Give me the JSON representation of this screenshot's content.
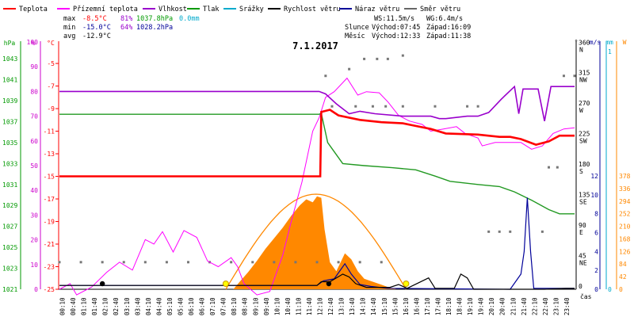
{
  "chart_data": {
    "type": "line",
    "title": "7.1.2017",
    "xlabel": "čas",
    "legend": [
      {
        "name": "Teplota",
        "color": "#ff0000"
      },
      {
        "name": "Přízemní teplota",
        "color": "#ff00ff"
      },
      {
        "name": "Vlhkost",
        "color": "#9900cc"
      },
      {
        "name": "Tlak",
        "color": "#009900"
      },
      {
        "name": "Srážky",
        "color": "#00aacc"
      },
      {
        "name": "Rychlost větru",
        "color": "#000000"
      },
      {
        "name": "Náraz větru",
        "color": "#000099"
      },
      {
        "name": "Směr větru",
        "color": "#666666"
      }
    ],
    "stats": {
      "max_label": "max",
      "min_label": "min",
      "avg_label": "avg",
      "max_temp": "-8.5°C",
      "max_hum": "81%",
      "max_press": "1037.8hPa",
      "max_rain": "0.0mm",
      "min_temp": "-15.0°C",
      "min_hum": "64%",
      "min_press": "1028.2hPa",
      "avg_temp": "-12.9°C"
    },
    "wind_info": {
      "ws": "WS:11.5m/s",
      "wg": "WG:6.4m/s"
    },
    "sun": {
      "label": "Slunce",
      "rise": "Východ:07:45",
      "set": "Západ:16:09"
    },
    "moon": {
      "label": "Měsíc",
      "rise": "Východ:12:33",
      "set": "Západ:11:38"
    },
    "axes": {
      "pressure": {
        "unit": "hPa",
        "ticks": [
          "1043",
          "1041",
          "1039",
          "1037",
          "1035",
          "1033",
          "1031",
          "1029",
          "1027",
          "1025",
          "1023",
          "1021"
        ],
        "range": [
          1021,
          1044.6
        ]
      },
      "humidity": {
        "unit": "%",
        "ticks": [
          "100",
          "90",
          "80",
          "70",
          "60",
          "50",
          "40",
          "30",
          "20",
          "10",
          "0"
        ],
        "range": [
          0,
          100
        ]
      },
      "temperature": {
        "unit": "°C",
        "ticks": [
          "-5",
          "-7",
          "-9",
          "-11",
          "-13",
          "-15",
          "-17",
          "-19",
          "-21",
          "-23",
          "-25"
        ],
        "range": [
          -25,
          -3.1
        ]
      },
      "direction": {
        "unit": "°",
        "ticks": [
          "360 N",
          "315 NW",
          "270 W",
          "225 SW",
          "180 S",
          "135 SE",
          "90 E",
          "45 NE",
          "0"
        ],
        "range": [
          0,
          360
        ]
      },
      "wind": {
        "unit": "m/s",
        "ticks": [
          "12",
          "10",
          "8",
          "6",
          "4",
          "2",
          "0"
        ],
        "range": [
          0,
          12
        ]
      },
      "rain": {
        "unit": "mm",
        "ticks": [
          "1",
          "0"
        ]
      },
      "solar": {
        "unit": "W",
        "ticks": [
          "378",
          "336",
          "294",
          "252",
          "210",
          "168",
          "126",
          "84",
          "42",
          "0"
        ],
        "range": [
          0,
          378
        ]
      },
      "time_ticks": [
        "00:10",
        "00:40",
        "01:10",
        "01:40",
        "02:10",
        "02:40",
        "03:10",
        "03:40",
        "04:10",
        "04:40",
        "05:10",
        "05:40",
        "06:10",
        "06:40",
        "07:10",
        "07:40",
        "08:10",
        "08:40",
        "09:10",
        "09:40",
        "10:10",
        "10:40",
        "11:10",
        "11:40",
        "12:10",
        "12:40",
        "13:10",
        "13:40",
        "14:10",
        "14:40",
        "15:10",
        "15:40",
        "16:10",
        "16:40",
        "17:10",
        "17:40",
        "18:10",
        "18:40",
        "19:10",
        "19:40",
        "20:10",
        "20:40",
        "21:10",
        "21:40",
        "22:10",
        "22:40",
        "23:10",
        "23:40"
      ]
    },
    "series": {
      "temperature": {
        "unit": "°C",
        "points": [
          [
            0,
            -15
          ],
          [
            12.15,
            -15
          ],
          [
            12.2,
            -9.3
          ],
          [
            12.6,
            -9.1
          ],
          [
            13,
            -9.6
          ],
          [
            14,
            -10
          ],
          [
            15,
            -10.2
          ],
          [
            16,
            -10.3
          ],
          [
            16.5,
            -10.5
          ],
          [
            17.3,
            -10.8
          ],
          [
            18,
            -11.2
          ],
          [
            19.5,
            -11.3
          ],
          [
            20.5,
            -11.5
          ],
          [
            21,
            -11.5
          ],
          [
            21.5,
            -11.7
          ],
          [
            22.2,
            -12.2
          ],
          [
            22.8,
            -11.9
          ],
          [
            23.3,
            -11.4
          ],
          [
            24,
            -11.4
          ]
        ]
      },
      "humidity": {
        "unit": "%",
        "points": [
          [
            0,
            80
          ],
          [
            12.1,
            80
          ],
          [
            12.4,
            79
          ],
          [
            12.9,
            75
          ],
          [
            13.5,
            71
          ],
          [
            14,
            72
          ],
          [
            14.7,
            71
          ],
          [
            16,
            70
          ],
          [
            17.3,
            70
          ],
          [
            17.7,
            69
          ],
          [
            18,
            69
          ],
          [
            19,
            70
          ],
          [
            19.5,
            70
          ],
          [
            20,
            71.5
          ],
          [
            20.6,
            77
          ],
          [
            21.2,
            82
          ],
          [
            21.4,
            71
          ],
          [
            21.6,
            81
          ],
          [
            22.3,
            81
          ],
          [
            22.6,
            68
          ],
          [
            22.9,
            82
          ],
          [
            24,
            82
          ]
        ]
      },
      "pressure": {
        "unit": "hPa",
        "points": [
          [
            0,
            1037.7
          ],
          [
            12.1,
            1037.7
          ],
          [
            12.2,
            1037.8
          ],
          [
            12.5,
            1035
          ],
          [
            13.2,
            1033
          ],
          [
            14.2,
            1032.8
          ],
          [
            15.5,
            1032.6
          ],
          [
            16.6,
            1032.4
          ],
          [
            17.5,
            1031.8
          ],
          [
            18.2,
            1031.3
          ],
          [
            19.5,
            1031
          ],
          [
            20.5,
            1030.8
          ],
          [
            21.2,
            1030.3
          ],
          [
            22,
            1029.5
          ],
          [
            22.8,
            1028.6
          ],
          [
            23.3,
            1028.2
          ],
          [
            24,
            1028.2
          ]
        ]
      },
      "ground_temperature": {
        "unit": "°C",
        "points": [
          [
            0,
            -25
          ],
          [
            0.5,
            -24.5
          ],
          [
            0.8,
            -25.5
          ],
          [
            1.5,
            -24.8
          ],
          [
            2.2,
            -23.5
          ],
          [
            2.8,
            -22.6
          ],
          [
            3.4,
            -23.3
          ],
          [
            4,
            -20.6
          ],
          [
            4.4,
            -21
          ],
          [
            4.8,
            -19.9
          ],
          [
            5.3,
            -21.7
          ],
          [
            5.8,
            -19.8
          ],
          [
            6.4,
            -20.4
          ],
          [
            6.9,
            -22.5
          ],
          [
            7.4,
            -23
          ],
          [
            8,
            -22.2
          ],
          [
            8.3,
            -23
          ],
          [
            8.6,
            -24.5
          ],
          [
            9.2,
            -25.5
          ],
          [
            9.8,
            -25.2
          ],
          [
            10.4,
            -22
          ],
          [
            10.8,
            -19
          ],
          [
            11.3,
            -15.5
          ],
          [
            11.8,
            -11
          ],
          [
            12.1,
            -9.8
          ],
          [
            12.4,
            -8
          ],
          [
            12.8,
            -7.5
          ],
          [
            13.4,
            -6.3
          ],
          [
            13.9,
            -7.8
          ],
          [
            14.3,
            -7.5
          ],
          [
            14.9,
            -7.6
          ],
          [
            15.3,
            -8.4
          ],
          [
            15.8,
            -9.6
          ],
          [
            16.3,
            -10.1
          ],
          [
            16.9,
            -10.4
          ],
          [
            17.3,
            -11
          ],
          [
            17.9,
            -10.8
          ],
          [
            18.5,
            -10.6
          ],
          [
            18.9,
            -11.2
          ],
          [
            19.5,
            -11.6
          ],
          [
            19.7,
            -12.3
          ],
          [
            20.3,
            -12
          ],
          [
            20.8,
            -12
          ],
          [
            21.5,
            -12
          ],
          [
            22,
            -12.6
          ],
          [
            22.5,
            -12.3
          ],
          [
            23,
            -11.2
          ],
          [
            23.5,
            -10.8
          ],
          [
            24,
            -10.7
          ]
        ]
      },
      "solar_radiation": {
        "unit": "W/m2",
        "points": [
          [
            8.1,
            0
          ],
          [
            8.4,
            25
          ],
          [
            8.8,
            58
          ],
          [
            9.2,
            95
          ],
          [
            9.6,
            135
          ],
          [
            10,
            170
          ],
          [
            10.4,
            205
          ],
          [
            10.8,
            245
          ],
          [
            11.2,
            280
          ],
          [
            11.5,
            300
          ],
          [
            11.8,
            290
          ],
          [
            12,
            310
          ],
          [
            12.2,
            305
          ],
          [
            12.35,
            200
          ],
          [
            12.6,
            90
          ],
          [
            12.9,
            60
          ],
          [
            13.3,
            120
          ],
          [
            13.6,
            100
          ],
          [
            13.9,
            60
          ],
          [
            14.2,
            35
          ],
          [
            14.6,
            25
          ],
          [
            15,
            15
          ],
          [
            15.4,
            5
          ],
          [
            15.7,
            0
          ]
        ]
      },
      "wind_speed": {
        "unit": "m/s",
        "points": [
          [
            0,
            0.4
          ],
          [
            12.0,
            0.4
          ],
          [
            12.2,
            0.8
          ],
          [
            12.6,
            0.8
          ],
          [
            13.2,
            1.6
          ],
          [
            13.5,
            1.3
          ],
          [
            13.8,
            0.6
          ],
          [
            14.3,
            0.2
          ],
          [
            15.4,
            0.2
          ],
          [
            15.8,
            0.5
          ],
          [
            16.2,
            0.1
          ],
          [
            17.2,
            1.2
          ],
          [
            17.5,
            0.1
          ],
          [
            18.4,
            0.1
          ],
          [
            18.7,
            1.6
          ],
          [
            19,
            1.2
          ],
          [
            19.3,
            0
          ],
          [
            22.6,
            0
          ],
          [
            23.6,
            0.1
          ],
          [
            24,
            0.1
          ]
        ]
      },
      "wind_gust": {
        "unit": "m/s",
        "points": [
          [
            0,
            0.4
          ],
          [
            12.0,
            0.4
          ],
          [
            12.3,
            0.9
          ],
          [
            12.8,
            1.1
          ],
          [
            13.3,
            2.7
          ],
          [
            13.6,
            1.6
          ],
          [
            14,
            0.5
          ],
          [
            14.5,
            0.3
          ],
          [
            15.3,
            0.1
          ],
          [
            21.0,
            0
          ],
          [
            21.5,
            1.6
          ],
          [
            21.65,
            4
          ],
          [
            21.8,
            9.7
          ],
          [
            21.95,
            4
          ],
          [
            22.1,
            0.1
          ],
          [
            24,
            0.1
          ]
        ]
      },
      "wind_direction": {
        "unit": "°",
        "points": [
          [
            0,
            40
          ],
          [
            1,
            40
          ],
          [
            2,
            40
          ],
          [
            3,
            40
          ],
          [
            4,
            40
          ],
          [
            5,
            40
          ],
          [
            6,
            40
          ],
          [
            7,
            40
          ],
          [
            8,
            40
          ],
          [
            9,
            40
          ],
          [
            10,
            40
          ],
          [
            11,
            40
          ],
          [
            12,
            40
          ],
          [
            13,
            40
          ],
          [
            14,
            40
          ],
          [
            15,
            40
          ],
          [
            12.7,
            270
          ],
          [
            13.8,
            270
          ],
          [
            14.6,
            270
          ],
          [
            15.2,
            270
          ],
          [
            16,
            270
          ],
          [
            17.5,
            270
          ],
          [
            19,
            270
          ],
          [
            19.5,
            270
          ],
          [
            12.4,
            315
          ],
          [
            13.5,
            325
          ],
          [
            14.2,
            340
          ],
          [
            14.8,
            340
          ],
          [
            15.3,
            340
          ],
          [
            16,
            345
          ],
          [
            20,
            85
          ],
          [
            20.5,
            85
          ],
          [
            21,
            85
          ],
          [
            22.5,
            85
          ],
          [
            22.8,
            180
          ],
          [
            23.2,
            180
          ],
          [
            23.5,
            315
          ],
          [
            24,
            315
          ]
        ]
      },
      "sun_curve": {
        "unit": "°",
        "note": "daylight arc",
        "points": [
          [
            7.75,
            0
          ],
          [
            12,
            100
          ],
          [
            16.15,
            0
          ]
        ]
      },
      "markers": {
        "sunrise": 7.75,
        "sunset": 16.15,
        "moonrise": 12.55,
        "moonset": 11.63
      }
    }
  }
}
